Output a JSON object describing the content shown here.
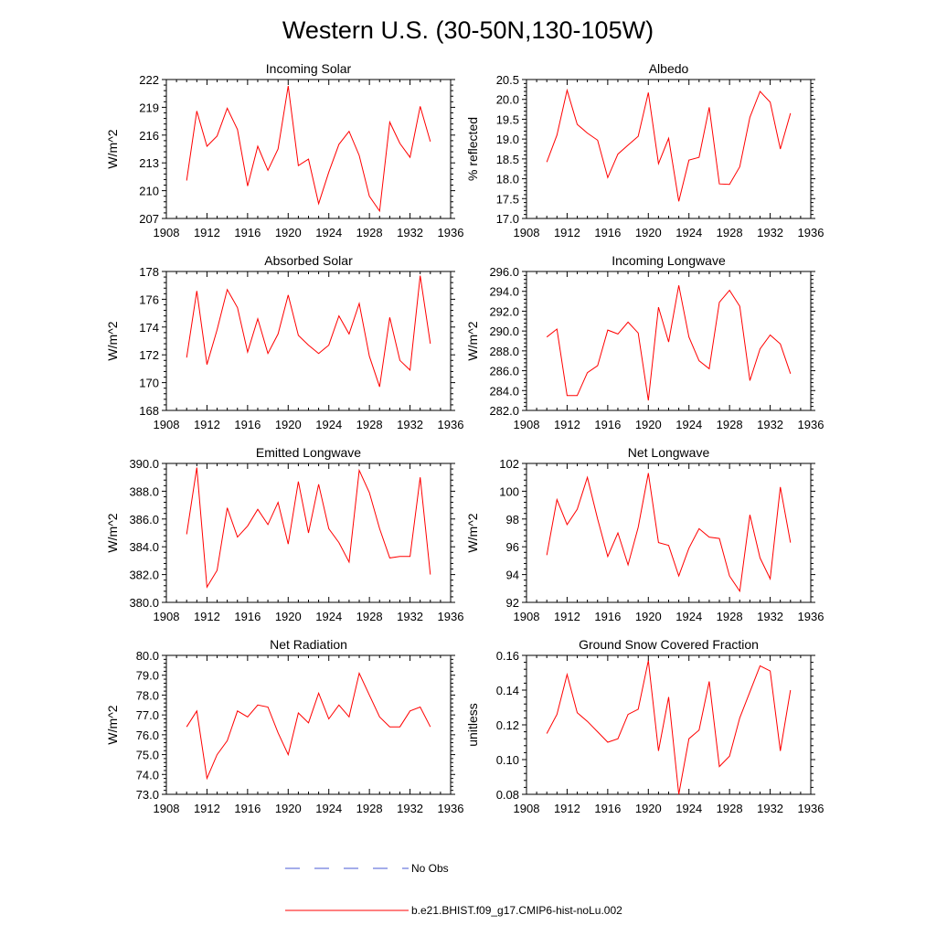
{
  "figure": {
    "title": "Western U.S. (30-50N,130-105W)"
  },
  "legend": {
    "entries": [
      {
        "label": "No Obs",
        "color": "#4a5bd4",
        "style": "dashed"
      },
      {
        "label": "b.e21.BHIST.f09_g17.CMIP6-hist-noLu.002",
        "color": "#ff0000",
        "style": "solid"
      }
    ]
  },
  "chart_data": [
    {
      "type": "line",
      "title": "Incoming Solar",
      "ylabel": "W/m^2",
      "xlim": [
        1908,
        1936
      ],
      "ylim": [
        207,
        222
      ],
      "xticks": [
        "1908",
        "1912",
        "1916",
        "1920",
        "1924",
        "1928",
        "1932",
        "1936"
      ],
      "yticks": [
        "207",
        "210",
        "213",
        "216",
        "219",
        "222"
      ],
      "x": [
        1910,
        1911,
        1912,
        1913,
        1914,
        1915,
        1916,
        1917,
        1918,
        1919,
        1920,
        1921,
        1922,
        1923,
        1924,
        1925,
        1926,
        1927,
        1928,
        1929,
        1930,
        1931,
        1932,
        1933,
        1934
      ],
      "series": [
        {
          "color": "#ff0000",
          "values": [
            211.1,
            218.6,
            214.8,
            215.9,
            218.9,
            216.6,
            210.5,
            214.8,
            212.2,
            214.5,
            221.3,
            212.7,
            213.4,
            208.6,
            212.0,
            215.0,
            216.4,
            213.8,
            209.4,
            207.8,
            217.4,
            215.1,
            213.6,
            219.1,
            215.3
          ]
        }
      ]
    },
    {
      "type": "line",
      "title": "Albedo",
      "ylabel": "% reflected",
      "xlim": [
        1908,
        1936
      ],
      "ylim": [
        17.0,
        20.5
      ],
      "xticks": [
        "1908",
        "1912",
        "1916",
        "1920",
        "1924",
        "1928",
        "1932",
        "1936"
      ],
      "yticks": [
        "17.0",
        "17.5",
        "18.0",
        "18.5",
        "19.0",
        "19.5",
        "20.0",
        "20.5"
      ],
      "x": [
        1910,
        1911,
        1912,
        1913,
        1914,
        1915,
        1916,
        1917,
        1918,
        1919,
        1920,
        1921,
        1922,
        1923,
        1924,
        1925,
        1926,
        1927,
        1928,
        1929,
        1930,
        1931,
        1932,
        1933,
        1934
      ],
      "series": [
        {
          "color": "#ff0000",
          "values": [
            18.42,
            19.1,
            20.23,
            19.37,
            19.15,
            18.97,
            18.03,
            18.62,
            18.85,
            19.07,
            20.17,
            18.38,
            19.02,
            17.43,
            18.47,
            18.54,
            19.8,
            17.87,
            17.86,
            18.3,
            19.55,
            20.2,
            19.93,
            18.75,
            19.65
          ]
        }
      ]
    },
    {
      "type": "line",
      "title": "Absorbed Solar",
      "ylabel": "W/m^2",
      "xlim": [
        1908,
        1936
      ],
      "ylim": [
        168,
        178
      ],
      "xticks": [
        "1908",
        "1912",
        "1916",
        "1920",
        "1924",
        "1928",
        "1932",
        "1936"
      ],
      "yticks": [
        "168",
        "170",
        "172",
        "174",
        "176",
        "178"
      ],
      "x": [
        1910,
        1911,
        1912,
        1913,
        1914,
        1915,
        1916,
        1917,
        1918,
        1919,
        1920,
        1921,
        1922,
        1923,
        1924,
        1925,
        1926,
        1927,
        1928,
        1929,
        1930,
        1931,
        1932,
        1933,
        1934
      ],
      "series": [
        {
          "color": "#ff0000",
          "values": [
            171.8,
            176.6,
            171.3,
            173.8,
            176.7,
            175.4,
            172.2,
            174.6,
            172.1,
            173.5,
            176.3,
            173.4,
            172.7,
            172.1,
            172.7,
            174.8,
            173.5,
            175.7,
            171.9,
            169.7,
            174.7,
            171.6,
            170.9,
            177.7,
            172.8
          ]
        }
      ]
    },
    {
      "type": "line",
      "title": "Incoming Longwave",
      "ylabel": "W/m^2",
      "xlim": [
        1908,
        1936
      ],
      "ylim": [
        282.0,
        296.0
      ],
      "xticks": [
        "1908",
        "1912",
        "1916",
        "1920",
        "1924",
        "1928",
        "1932",
        "1936"
      ],
      "yticks": [
        "282.0",
        "284.0",
        "286.0",
        "288.0",
        "290.0",
        "292.0",
        "294.0",
        "296.0"
      ],
      "x": [
        1910,
        1911,
        1912,
        1913,
        1914,
        1915,
        1916,
        1917,
        1918,
        1919,
        1920,
        1921,
        1922,
        1923,
        1924,
        1925,
        1926,
        1927,
        1928,
        1929,
        1930,
        1931,
        1932,
        1933,
        1934
      ],
      "series": [
        {
          "color": "#ff0000",
          "values": [
            289.4,
            290.2,
            283.5,
            283.5,
            285.8,
            286.5,
            290.1,
            289.7,
            290.9,
            289.8,
            283.0,
            292.4,
            288.9,
            294.6,
            289.4,
            287.0,
            286.2,
            292.9,
            294.1,
            292.5,
            285.0,
            288.2,
            289.6,
            288.7,
            285.7
          ]
        }
      ]
    },
    {
      "type": "line",
      "title": "Emitted Longwave",
      "ylabel": "W/m^2",
      "xlim": [
        1908,
        1936
      ],
      "ylim": [
        380.0,
        390.0
      ],
      "xticks": [
        "1908",
        "1912",
        "1916",
        "1920",
        "1924",
        "1928",
        "1932",
        "1936"
      ],
      "yticks": [
        "380.0",
        "382.0",
        "384.0",
        "386.0",
        "388.0",
        "390.0"
      ],
      "x": [
        1910,
        1911,
        1912,
        1913,
        1914,
        1915,
        1916,
        1917,
        1918,
        1919,
        1920,
        1921,
        1922,
        1923,
        1924,
        1925,
        1926,
        1927,
        1928,
        1929,
        1930,
        1931,
        1932,
        1933,
        1934
      ],
      "series": [
        {
          "color": "#ff0000",
          "values": [
            384.9,
            389.7,
            381.1,
            382.3,
            386.8,
            384.7,
            385.5,
            386.7,
            385.6,
            387.2,
            384.2,
            388.7,
            385.0,
            388.5,
            385.3,
            384.3,
            382.9,
            389.5,
            387.9,
            385.3,
            383.2,
            383.3,
            383.3,
            389.0,
            382.0
          ]
        }
      ]
    },
    {
      "type": "line",
      "title": "Net Longwave",
      "ylabel": "W/m^2",
      "xlim": [
        1908,
        1936
      ],
      "ylim": [
        92,
        102
      ],
      "xticks": [
        "1908",
        "1912",
        "1916",
        "1920",
        "1924",
        "1928",
        "1932",
        "1936"
      ],
      "yticks": [
        "92",
        "94",
        "96",
        "98",
        "100",
        "102"
      ],
      "x": [
        1910,
        1911,
        1912,
        1913,
        1914,
        1915,
        1916,
        1917,
        1918,
        1919,
        1920,
        1921,
        1922,
        1923,
        1924,
        1925,
        1926,
        1927,
        1928,
        1929,
        1930,
        1931,
        1932,
        1933,
        1934
      ],
      "series": [
        {
          "color": "#ff0000",
          "values": [
            95.4,
            99.4,
            97.6,
            98.7,
            101.0,
            98.0,
            95.3,
            97.0,
            94.7,
            97.4,
            101.3,
            96.3,
            96.1,
            93.9,
            95.9,
            97.3,
            96.7,
            96.6,
            93.9,
            92.8,
            98.3,
            95.2,
            93.7,
            100.3,
            96.3
          ]
        }
      ]
    },
    {
      "type": "line",
      "title": "Net Radiation",
      "ylabel": "W/m^2",
      "xlim": [
        1908,
        1936
      ],
      "ylim": [
        73.0,
        80.0
      ],
      "xticks": [
        "1908",
        "1912",
        "1916",
        "1920",
        "1924",
        "1928",
        "1932",
        "1936"
      ],
      "yticks": [
        "73.0",
        "74.0",
        "75.0",
        "76.0",
        "77.0",
        "78.0",
        "79.0",
        "80.0"
      ],
      "x": [
        1910,
        1911,
        1912,
        1913,
        1914,
        1915,
        1916,
        1917,
        1918,
        1919,
        1920,
        1921,
        1922,
        1923,
        1924,
        1925,
        1926,
        1927,
        1928,
        1929,
        1930,
        1931,
        1932,
        1933,
        1934
      ],
      "series": [
        {
          "color": "#ff0000",
          "values": [
            76.4,
            77.2,
            73.8,
            75.0,
            75.7,
            77.2,
            76.9,
            77.5,
            77.4,
            76.1,
            75.0,
            77.1,
            76.6,
            78.1,
            76.8,
            77.5,
            76.9,
            79.1,
            78.0,
            76.9,
            76.4,
            76.4,
            77.2,
            77.4,
            76.4
          ]
        }
      ]
    },
    {
      "type": "line",
      "title": "Ground Snow Covered Fraction",
      "ylabel": "unitless",
      "xlim": [
        1908,
        1936
      ],
      "ylim": [
        0.08,
        0.16
      ],
      "xticks": [
        "1908",
        "1912",
        "1916",
        "1920",
        "1924",
        "1928",
        "1932",
        "1936"
      ],
      "yticks": [
        "0.08",
        "0.10",
        "0.12",
        "0.14",
        "0.16"
      ],
      "x": [
        1910,
        1911,
        1912,
        1913,
        1914,
        1915,
        1916,
        1917,
        1918,
        1919,
        1920,
        1921,
        1922,
        1923,
        1924,
        1925,
        1926,
        1927,
        1928,
        1929,
        1930,
        1931,
        1932,
        1933,
        1934
      ],
      "series": [
        {
          "color": "#ff0000",
          "values": [
            0.115,
            0.126,
            0.149,
            0.127,
            0.122,
            0.116,
            0.11,
            0.112,
            0.126,
            0.129,
            0.157,
            0.105,
            0.136,
            0.08,
            0.112,
            0.117,
            0.145,
            0.096,
            0.102,
            0.124,
            0.139,
            0.154,
            0.151,
            0.105,
            0.14
          ]
        }
      ]
    }
  ]
}
